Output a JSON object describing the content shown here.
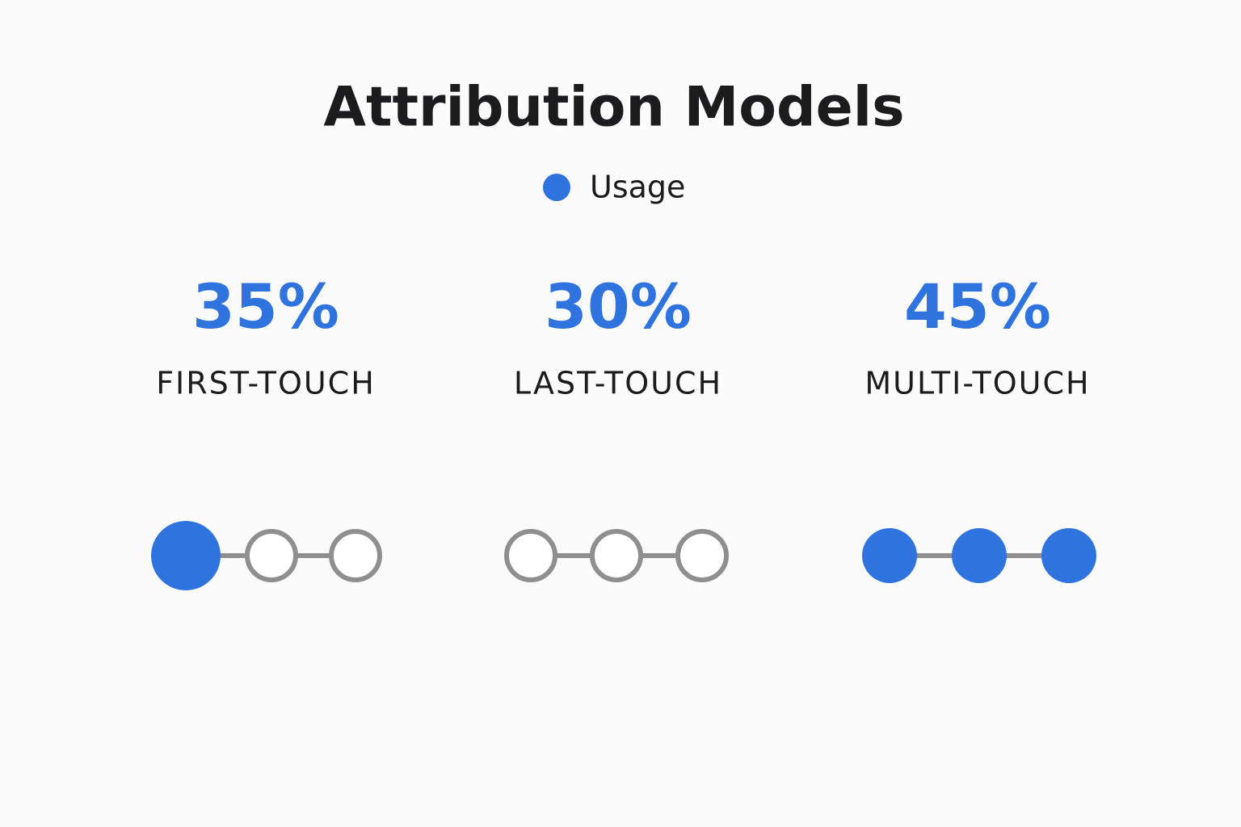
{
  "chart_data": {
    "type": "stat",
    "title": "Attribution Models",
    "categories": [
      "FIRST-TOUCH",
      "LAST-TOUCH",
      "MULTI-TOUCH"
    ],
    "series": [
      {
        "name": "Usage",
        "color": "#2f74de",
        "values": [
          35,
          30,
          45
        ],
        "value_labels": [
          "35%",
          "30%",
          "45%"
        ]
      }
    ]
  }
}
